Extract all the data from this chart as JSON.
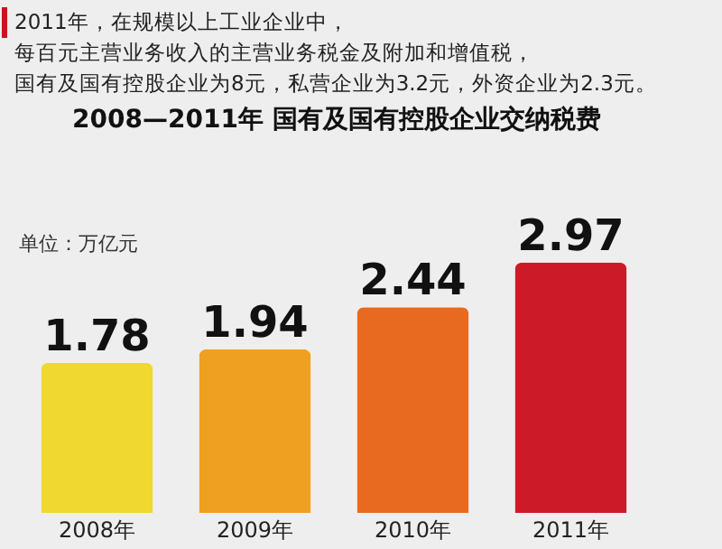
{
  "chart_data": {
    "type": "bar",
    "title": "2008—2011年  国有及国有控股企业交纳税费",
    "ylabel": "单位：万亿元",
    "annotations": [
      "2011年，在规模以上工业企业中，",
      "每百元主营业务收入的主营业务税金及附加和增值税，",
      "国有及国有控股企业为8元，私营企业为3.2元，外资企业为2.3元。"
    ],
    "categories": [
      "2008年",
      "2009年",
      "2010年",
      "2011年"
    ],
    "values": [
      1.78,
      1.94,
      2.44,
      2.97
    ],
    "colors": [
      "#f0d830",
      "#f0a020",
      "#e86a20",
      "#cc1a28"
    ],
    "data_labels": true,
    "tick_labels": "x"
  }
}
